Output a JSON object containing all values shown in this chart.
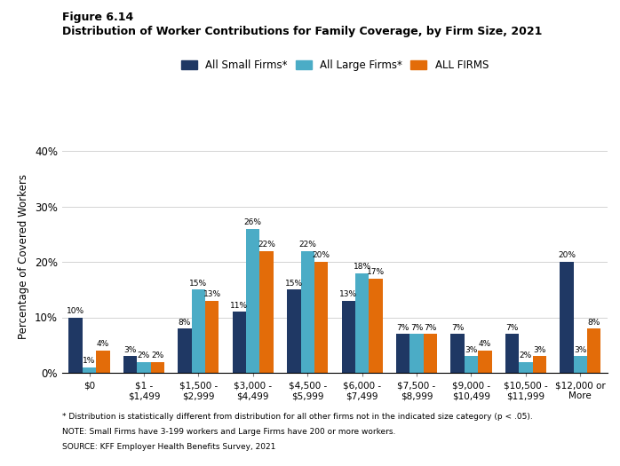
{
  "title_line1": "Figure 6.14",
  "title_line2": "Distribution of Worker Contributions for Family Coverage, by Firm Size, 2021",
  "categories": [
    "$0",
    "$1 -\n$1,499",
    "$1,500 -\n$2,999",
    "$3,000 -\n$4,499",
    "$4,500 -\n$5,999",
    "$6,000 -\n$7,499",
    "$7,500 -\n$8,999",
    "$9,000 -\n$10,499",
    "$10,500 -\n$11,999",
    "$12,000 or\nMore"
  ],
  "small_firms": [
    10,
    3,
    8,
    11,
    15,
    13,
    7,
    7,
    7,
    20
  ],
  "large_firms": [
    1,
    2,
    15,
    26,
    22,
    18,
    7,
    3,
    2,
    3
  ],
  "all_firms": [
    4,
    2,
    13,
    22,
    20,
    17,
    7,
    4,
    3,
    8
  ],
  "colors": {
    "small": "#1f3864",
    "large": "#4bacc6",
    "all": "#e36c09"
  },
  "legend_labels": [
    "All Small Firms*",
    "All Large Firms*",
    "ALL FIRMS"
  ],
  "ylabel": "Percentage of Covered Workers",
  "ylim": [
    0,
    42
  ],
  "yticks": [
    0,
    10,
    20,
    30,
    40
  ],
  "ytick_labels": [
    "0%",
    "10%",
    "20%",
    "30%",
    "40%"
  ],
  "footnote1": "* Distribution is statistically different from distribution for all other firms not in the indicated size category (p < .05).",
  "footnote2": "NOTE: Small Firms have 3-199 workers and Large Firms have 200 or more workers.",
  "footnote3": "SOURCE: KFF Employer Health Benefits Survey, 2021"
}
